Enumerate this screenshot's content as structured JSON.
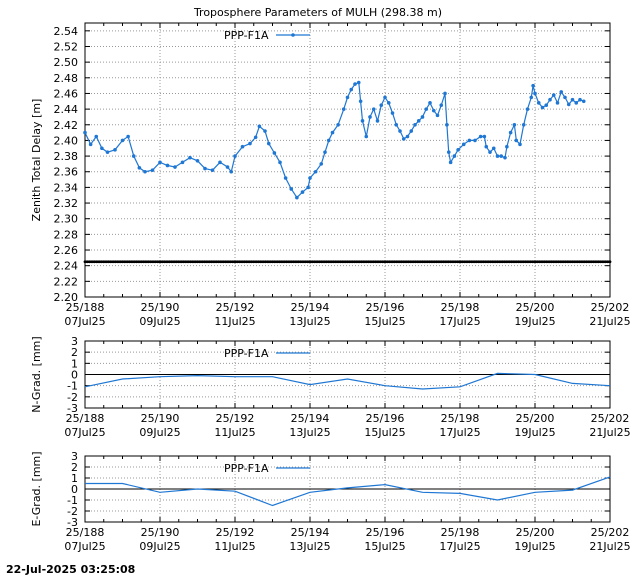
{
  "title": "Troposphere Parameters of MULH (298.38 m)",
  "timestamp": "22-Jul-2025 03:25:08",
  "series_color": "#1f77d4",
  "ref_line_color": "#000000",
  "chart_data": [
    {
      "type": "line",
      "ylabel": "Zenith Total Delay [m]",
      "xlim": [
        188,
        202
      ],
      "ylim": [
        2.2,
        2.55
      ],
      "yticks": [
        "2.20",
        "2.22",
        "2.24",
        "2.26",
        "2.28",
        "2.30",
        "2.32",
        "2.34",
        "2.36",
        "2.38",
        "2.40",
        "2.42",
        "2.44",
        "2.46",
        "2.48",
        "2.50",
        "2.52",
        "2.54"
      ],
      "xticks": [
        {
          "x": 188,
          "doy": "25/188",
          "date": "07Jul25"
        },
        {
          "x": 190,
          "doy": "25/190",
          "date": "09Jul25"
        },
        {
          "x": 192,
          "doy": "25/192",
          "date": "11Jul25"
        },
        {
          "x": 194,
          "doy": "25/194",
          "date": "13Jul25"
        },
        {
          "x": 196,
          "doy": "25/196",
          "date": "15Jul25"
        },
        {
          "x": 198,
          "doy": "25/198",
          "date": "17Jul25"
        },
        {
          "x": 200,
          "doy": "25/200",
          "date": "19Jul25"
        },
        {
          "x": 202,
          "doy": "25/202",
          "date": "21Jul25"
        }
      ],
      "grid": true,
      "legend": "top-left",
      "series": [
        {
          "name": "PPP-F1A",
          "marker": "dot",
          "points": [
            [
              188.0,
              2.41
            ],
            [
              188.15,
              2.395
            ],
            [
              188.3,
              2.405
            ],
            [
              188.45,
              2.39
            ],
            [
              188.6,
              2.385
            ],
            [
              188.8,
              2.388
            ],
            [
              189.0,
              2.4
            ],
            [
              189.15,
              2.405
            ],
            [
              189.3,
              2.38
            ],
            [
              189.45,
              2.365
            ],
            [
              189.6,
              2.36
            ],
            [
              189.8,
              2.362
            ],
            [
              190.0,
              2.372
            ],
            [
              190.2,
              2.368
            ],
            [
              190.4,
              2.366
            ],
            [
              190.6,
              2.372
            ],
            [
              190.8,
              2.378
            ],
            [
              191.0,
              2.374
            ],
            [
              191.2,
              2.364
            ],
            [
              191.4,
              2.362
            ],
            [
              191.6,
              2.372
            ],
            [
              191.8,
              2.366
            ],
            [
              191.9,
              2.36
            ],
            [
              192.0,
              2.38
            ],
            [
              192.2,
              2.392
            ],
            [
              192.4,
              2.396
            ],
            [
              192.55,
              2.404
            ],
            [
              192.65,
              2.418
            ],
            [
              192.8,
              2.412
            ],
            [
              192.9,
              2.396
            ],
            [
              193.05,
              2.384
            ],
            [
              193.2,
              2.372
            ],
            [
              193.35,
              2.352
            ],
            [
              193.5,
              2.338
            ],
            [
              193.65,
              2.327
            ],
            [
              193.8,
              2.334
            ],
            [
              193.95,
              2.34
            ],
            [
              194.0,
              2.352
            ],
            [
              194.15,
              2.36
            ],
            [
              194.3,
              2.37
            ],
            [
              194.4,
              2.385
            ],
            [
              194.5,
              2.4
            ],
            [
              194.6,
              2.41
            ],
            [
              194.75,
              2.42
            ],
            [
              194.9,
              2.44
            ],
            [
              195.0,
              2.455
            ],
            [
              195.1,
              2.465
            ],
            [
              195.2,
              2.472
            ],
            [
              195.3,
              2.474
            ],
            [
              195.35,
              2.45
            ],
            [
              195.4,
              2.425
            ],
            [
              195.5,
              2.405
            ],
            [
              195.6,
              2.43
            ],
            [
              195.7,
              2.44
            ],
            [
              195.8,
              2.425
            ],
            [
              195.9,
              2.445
            ],
            [
              196.0,
              2.455
            ],
            [
              196.1,
              2.448
            ],
            [
              196.2,
              2.435
            ],
            [
              196.3,
              2.42
            ],
            [
              196.4,
              2.412
            ],
            [
              196.5,
              2.402
            ],
            [
              196.6,
              2.405
            ],
            [
              196.7,
              2.412
            ],
            [
              196.8,
              2.42
            ],
            [
              196.9,
              2.425
            ],
            [
              197.0,
              2.43
            ],
            [
              197.1,
              2.44
            ],
            [
              197.2,
              2.448
            ],
            [
              197.3,
              2.438
            ],
            [
              197.4,
              2.432
            ],
            [
              197.5,
              2.445
            ],
            [
              197.6,
              2.46
            ],
            [
              197.65,
              2.42
            ],
            [
              197.7,
              2.385
            ],
            [
              197.75,
              2.372
            ],
            [
              197.85,
              2.38
            ],
            [
              197.95,
              2.388
            ],
            [
              198.1,
              2.395
            ],
            [
              198.25,
              2.4
            ],
            [
              198.4,
              2.4
            ],
            [
              198.55,
              2.405
            ],
            [
              198.65,
              2.405
            ],
            [
              198.7,
              2.392
            ],
            [
              198.8,
              2.385
            ],
            [
              198.9,
              2.39
            ],
            [
              199.0,
              2.38
            ],
            [
              199.1,
              2.38
            ],
            [
              199.2,
              2.378
            ],
            [
              199.25,
              2.392
            ],
            [
              199.35,
              2.41
            ],
            [
              199.45,
              2.42
            ],
            [
              199.5,
              2.4
            ],
            [
              199.6,
              2.395
            ],
            [
              199.7,
              2.42
            ],
            [
              199.8,
              2.44
            ],
            [
              199.9,
              2.455
            ],
            [
              199.95,
              2.47
            ],
            [
              200.0,
              2.46
            ],
            [
              200.1,
              2.448
            ],
            [
              200.2,
              2.442
            ],
            [
              200.3,
              2.445
            ],
            [
              200.4,
              2.452
            ],
            [
              200.5,
              2.458
            ],
            [
              200.6,
              2.448
            ],
            [
              200.7,
              2.462
            ],
            [
              200.8,
              2.455
            ],
            [
              200.9,
              2.446
            ],
            [
              201.0,
              2.452
            ],
            [
              201.1,
              2.448
            ],
            [
              201.2,
              2.452
            ],
            [
              201.3,
              2.45
            ]
          ]
        },
        {
          "name": "",
          "marker": "dot",
          "style": "reference",
          "points": [
            [
              188.0,
              2.245
            ],
            [
              202.0,
              2.245
            ]
          ]
        }
      ]
    },
    {
      "type": "line",
      "ylabel": "N-Grad. [mm]",
      "xlim": [
        188,
        202
      ],
      "ylim": [
        -3,
        3
      ],
      "yticks": [
        "-3",
        "-2",
        "-1",
        "0",
        "1",
        "2",
        "3"
      ],
      "xticks": [
        {
          "x": 188,
          "doy": "25/188",
          "date": "07Jul25"
        },
        {
          "x": 190,
          "doy": "25/190",
          "date": "09Jul25"
        },
        {
          "x": 192,
          "doy": "25/192",
          "date": "11Jul25"
        },
        {
          "x": 194,
          "doy": "25/194",
          "date": "13Jul25"
        },
        {
          "x": 196,
          "doy": "25/196",
          "date": "15Jul25"
        },
        {
          "x": 198,
          "doy": "25/198",
          "date": "17Jul25"
        },
        {
          "x": 200,
          "doy": "25/200",
          "date": "19Jul25"
        },
        {
          "x": 202,
          "doy": "25/202",
          "date": "21Jul25"
        }
      ],
      "grid": true,
      "legend": "top-left",
      "series": [
        {
          "name": "PPP-F1A",
          "marker": "none",
          "points": [
            [
              188,
              -1.1
            ],
            [
              189,
              -0.4
            ],
            [
              190,
              -0.2
            ],
            [
              191,
              -0.1
            ],
            [
              192,
              -0.2
            ],
            [
              193,
              -0.2
            ],
            [
              194,
              -0.9
            ],
            [
              195,
              -0.4
            ],
            [
              196,
              -1.0
            ],
            [
              197,
              -1.3
            ],
            [
              198,
              -1.1
            ],
            [
              199,
              0.1
            ],
            [
              200,
              0.0
            ],
            [
              201,
              -0.8
            ],
            [
              202,
              -1.0
            ]
          ]
        }
      ]
    },
    {
      "type": "line",
      "ylabel": "E-Grad. [mm]",
      "xlim": [
        188,
        202
      ],
      "ylim": [
        -3,
        3
      ],
      "yticks": [
        "-3",
        "-2",
        "-1",
        "0",
        "1",
        "2",
        "3"
      ],
      "xticks": [
        {
          "x": 188,
          "doy": "25/188",
          "date": "07Jul25"
        },
        {
          "x": 190,
          "doy": "25/190",
          "date": "09Jul25"
        },
        {
          "x": 192,
          "doy": "25/192",
          "date": "11Jul25"
        },
        {
          "x": 194,
          "doy": "25/194",
          "date": "13Jul25"
        },
        {
          "x": 196,
          "doy": "25/196",
          "date": "15Jul25"
        },
        {
          "x": 198,
          "doy": "25/198",
          "date": "17Jul25"
        },
        {
          "x": 200,
          "doy": "25/200",
          "date": "19Jul25"
        },
        {
          "x": 202,
          "doy": "25/202",
          "date": "21Jul25"
        }
      ],
      "grid": true,
      "legend": "top-left",
      "series": [
        {
          "name": "PPP-F1A",
          "marker": "none",
          "points": [
            [
              188,
              0.5
            ],
            [
              189,
              0.5
            ],
            [
              190,
              -0.3
            ],
            [
              191,
              0.0
            ],
            [
              192,
              -0.2
            ],
            [
              193,
              -1.5
            ],
            [
              194,
              -0.3
            ],
            [
              195,
              0.1
            ],
            [
              196,
              0.4
            ],
            [
              197,
              -0.3
            ],
            [
              198,
              -0.4
            ],
            [
              199,
              -1.0
            ],
            [
              200,
              -0.3
            ],
            [
              201,
              -0.1
            ],
            [
              202,
              1.1
            ]
          ]
        }
      ]
    }
  ]
}
